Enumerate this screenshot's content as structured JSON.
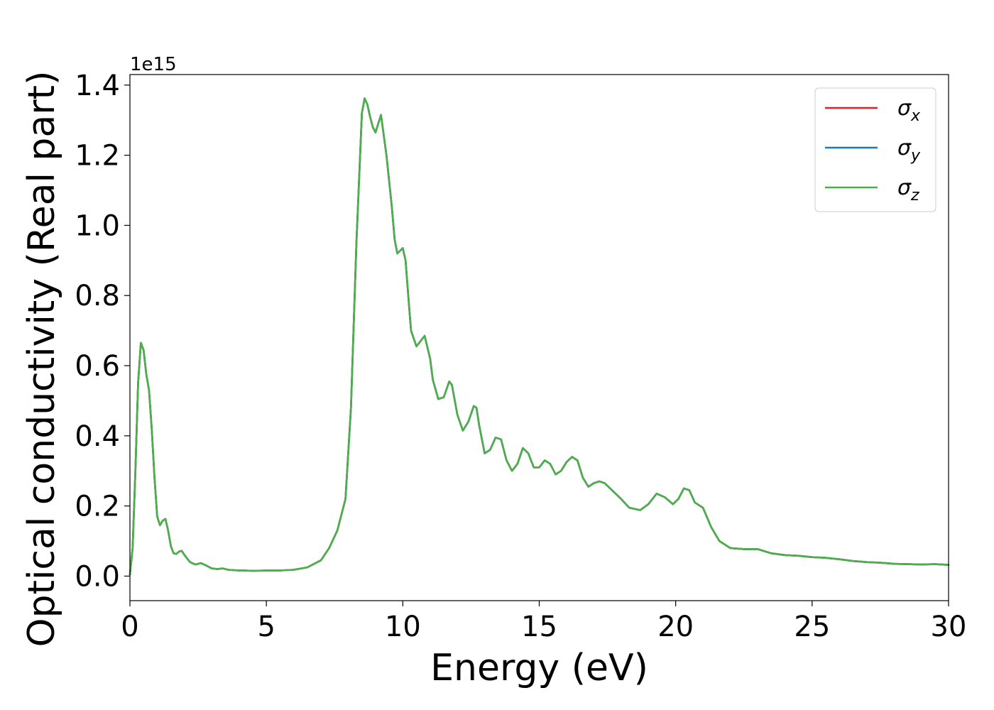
{
  "chart_data": {
    "type": "line",
    "title": "",
    "xlabel": "Energy (eV)",
    "ylabel": "Optical conductivity (Real part)",
    "y_offset_label": "1e15",
    "y_scale": 1000000000000000.0,
    "xlim": [
      0,
      30
    ],
    "ylim": [
      -0.07,
      1.43
    ],
    "x_ticks": [
      0,
      5,
      10,
      15,
      20,
      25,
      30
    ],
    "x_tick_labels": [
      "0",
      "5",
      "10",
      "15",
      "20",
      "25",
      "30"
    ],
    "y_ticks": [
      0.0,
      0.2,
      0.4,
      0.6,
      0.8,
      1.0,
      1.2,
      1.4
    ],
    "y_tick_labels": [
      "0.0",
      "0.2",
      "0.4",
      "0.6",
      "0.8",
      "1.0",
      "1.2",
      "1.4"
    ],
    "grid": false,
    "legend_position": "top-right",
    "series": [
      {
        "name": "σx",
        "base": "σ",
        "sub": "x",
        "color": "#d62728",
        "values_same_as": "σz"
      },
      {
        "name": "σy",
        "base": "σ",
        "sub": "y",
        "color": "#1f77b4",
        "values_same_as": "σz"
      },
      {
        "name": "σz",
        "base": "σ",
        "sub": "z",
        "color": "#4daf4a"
      }
    ],
    "x": [
      0,
      0.1,
      0.2,
      0.3,
      0.4,
      0.5,
      0.6,
      0.7,
      0.8,
      0.9,
      1.0,
      1.1,
      1.2,
      1.3,
      1.4,
      1.5,
      1.6,
      1.7,
      1.8,
      1.9,
      2.0,
      2.2,
      2.4,
      2.6,
      2.8,
      3.0,
      3.2,
      3.4,
      3.6,
      3.8,
      4.0,
      4.2,
      4.5,
      5.0,
      5.5,
      6.0,
      6.5,
      7.0,
      7.3,
      7.6,
      7.9,
      8.1,
      8.3,
      8.5,
      8.6,
      8.7,
      8.8,
      8.9,
      9.0,
      9.2,
      9.4,
      9.6,
      9.7,
      9.8,
      10.0,
      10.1,
      10.2,
      10.3,
      10.5,
      10.7,
      10.8,
      11.0,
      11.1,
      11.3,
      11.5,
      11.7,
      11.8,
      12.0,
      12.2,
      12.4,
      12.6,
      12.7,
      12.8,
      13.0,
      13.2,
      13.4,
      13.6,
      13.8,
      14.0,
      14.2,
      14.4,
      14.6,
      14.8,
      15.0,
      15.2,
      15.4,
      15.6,
      15.8,
      16.0,
      16.2,
      16.4,
      16.6,
      16.8,
      17.0,
      17.2,
      17.4,
      17.6,
      17.8,
      18.0,
      18.3,
      18.7,
      19.0,
      19.3,
      19.6,
      19.9,
      20.1,
      20.3,
      20.5,
      20.7,
      21.0,
      21.3,
      21.6,
      22.0,
      22.5,
      23.0,
      23.5,
      24.0,
      24.5,
      25.0,
      25.5,
      26.0,
      26.5,
      27.0,
      27.5,
      28.0,
      28.5,
      29.0,
      29.5,
      30.0
    ],
    "values": [
      0.005,
      0.08,
      0.3,
      0.55,
      0.665,
      0.645,
      0.575,
      0.53,
      0.42,
      0.28,
      0.17,
      0.145,
      0.158,
      0.163,
      0.13,
      0.085,
      0.065,
      0.063,
      0.07,
      0.072,
      0.06,
      0.04,
      0.033,
      0.037,
      0.03,
      0.022,
      0.02,
      0.022,
      0.018,
      0.017,
      0.016,
      0.016,
      0.015,
      0.016,
      0.016,
      0.018,
      0.025,
      0.045,
      0.08,
      0.13,
      0.22,
      0.48,
      0.95,
      1.32,
      1.362,
      1.345,
      1.31,
      1.28,
      1.265,
      1.315,
      1.2,
      1.05,
      0.96,
      0.92,
      0.935,
      0.9,
      0.8,
      0.7,
      0.655,
      0.675,
      0.685,
      0.62,
      0.56,
      0.505,
      0.51,
      0.555,
      0.545,
      0.46,
      0.415,
      0.44,
      0.485,
      0.48,
      0.43,
      0.35,
      0.36,
      0.395,
      0.39,
      0.33,
      0.3,
      0.32,
      0.365,
      0.35,
      0.31,
      0.31,
      0.33,
      0.32,
      0.29,
      0.3,
      0.325,
      0.34,
      0.33,
      0.28,
      0.255,
      0.265,
      0.27,
      0.265,
      0.25,
      0.235,
      0.22,
      0.195,
      0.188,
      0.205,
      0.235,
      0.225,
      0.205,
      0.22,
      0.25,
      0.245,
      0.21,
      0.195,
      0.14,
      0.1,
      0.08,
      0.077,
      0.077,
      0.065,
      0.06,
      0.058,
      0.054,
      0.052,
      0.048,
      0.043,
      0.04,
      0.038,
      0.035,
      0.034,
      0.033,
      0.034,
      0.032
    ]
  }
}
